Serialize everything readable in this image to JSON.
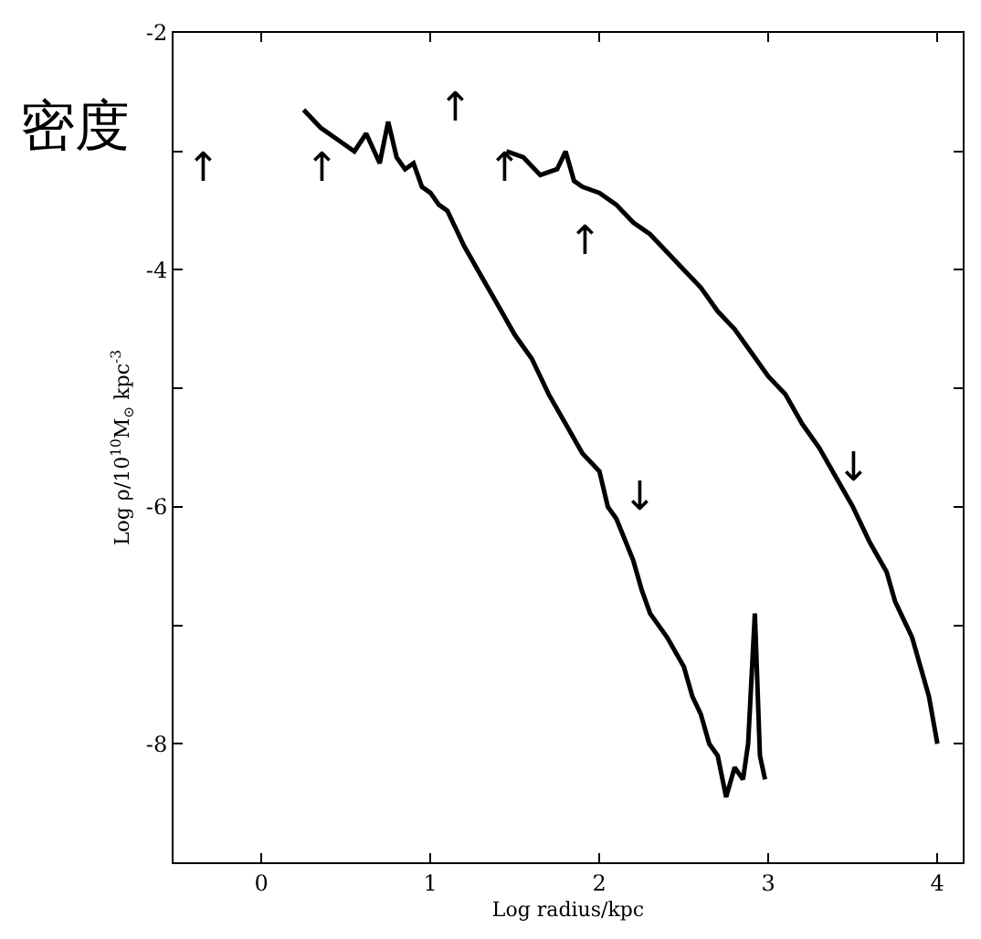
{
  "chart_data": {
    "type": "line",
    "xlabel": "Log radius/kpc",
    "ylabel": "Log ρ/10$^{10}$M$_{⊙}$ kpc$^{-3}$",
    "xlim": [
      -0.52,
      4.15
    ],
    "ylim": [
      -9,
      -2
    ],
    "xticks": [
      0,
      1,
      2,
      3,
      4
    ],
    "yticks": [
      {
        "value": -2,
        "label": "-2"
      },
      {
        "value": -3,
        "label": null
      },
      {
        "value": -4,
        "label": "-4"
      },
      {
        "value": -5,
        "label": null
      },
      {
        "value": -6,
        "label": "-6"
      },
      {
        "value": -7,
        "label": null
      },
      {
        "value": -8,
        "label": "-8"
      },
      {
        "value": -9,
        "label": null
      }
    ],
    "grid": false,
    "legend": false,
    "marker": "none",
    "line_style": "solid",
    "series": [
      {
        "color": "#000000",
        "x": [
          0.25,
          0.35,
          0.45,
          0.55,
          0.62,
          0.7,
          0.75,
          0.8,
          0.85,
          0.9,
          0.95,
          1.0,
          1.05,
          1.1,
          1.2,
          1.3,
          1.4,
          1.5,
          1.6,
          1.7,
          1.8,
          1.9,
          2.0,
          2.05,
          2.1,
          2.2,
          2.25,
          2.3,
          2.4,
          2.5,
          2.55,
          2.6,
          2.65,
          2.7,
          2.75,
          2.8,
          2.85,
          2.88,
          2.92,
          2.95,
          2.98
        ],
        "values": [
          -2.65,
          -2.8,
          -2.9,
          -3.0,
          -2.85,
          -3.1,
          -2.75,
          -3.05,
          -3.15,
          -3.1,
          -3.3,
          -3.35,
          -3.45,
          -3.5,
          -3.8,
          -4.05,
          -4.3,
          -4.55,
          -4.75,
          -5.05,
          -5.3,
          -5.55,
          -5.7,
          -6.0,
          -6.1,
          -6.45,
          -6.7,
          -6.9,
          -7.1,
          -7.35,
          -7.6,
          -7.75,
          -8.0,
          -8.1,
          -8.45,
          -8.2,
          -8.3,
          -8.0,
          -6.9,
          -8.1,
          -8.3
        ]
      },
      {
        "color": "#000000",
        "x": [
          1.45,
          1.55,
          1.65,
          1.75,
          1.8,
          1.85,
          1.9,
          2.0,
          2.1,
          2.2,
          2.3,
          2.4,
          2.5,
          2.6,
          2.7,
          2.8,
          2.9,
          3.0,
          3.1,
          3.2,
          3.3,
          3.4,
          3.5,
          3.6,
          3.7,
          3.75,
          3.8,
          3.85,
          3.9,
          3.95,
          4.0
        ],
        "values": [
          -3.0,
          -3.05,
          -3.2,
          -3.15,
          -3.0,
          -3.25,
          -3.3,
          -3.35,
          -3.45,
          -3.6,
          -3.7,
          -3.85,
          -4.0,
          -4.15,
          -4.35,
          -4.5,
          -4.7,
          -4.9,
          -5.05,
          -5.3,
          -5.5,
          -5.75,
          -6.0,
          -6.3,
          -6.55,
          -6.8,
          -6.95,
          -7.1,
          -7.35,
          -7.6,
          -8.0
        ]
      }
    ],
    "annotations": [
      "密度",
      "↑",
      "↑",
      "↑",
      "↑",
      "↑",
      "↓",
      "↓"
    ]
  }
}
